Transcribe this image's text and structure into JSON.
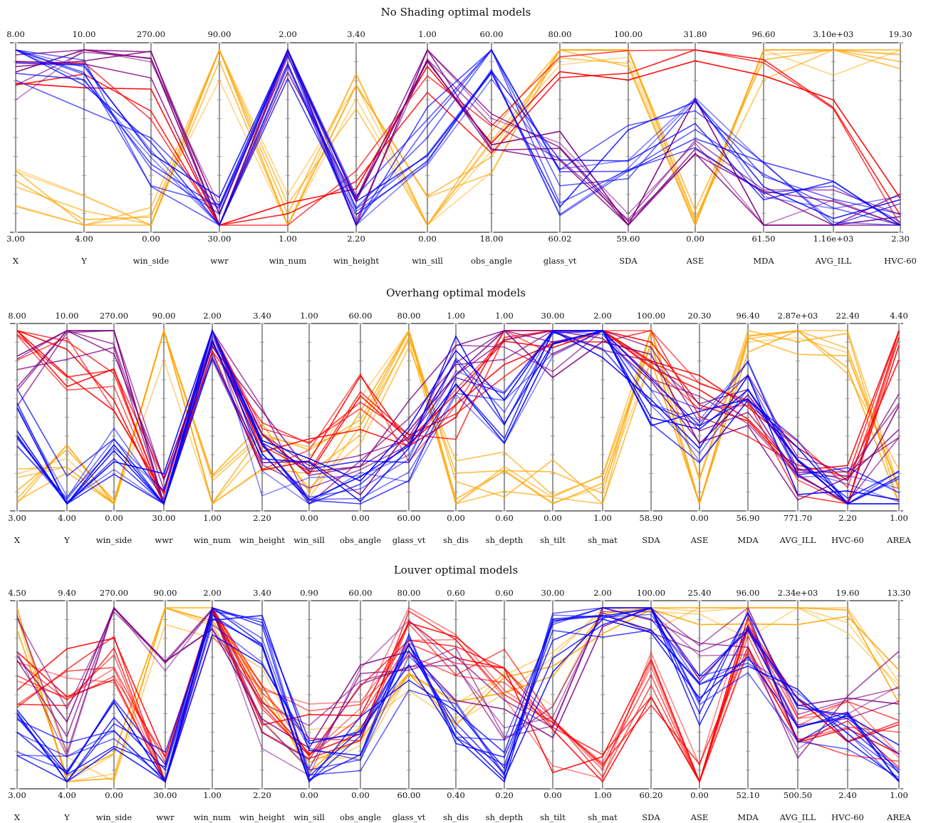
{
  "colors": {
    "orange": "#ffa500",
    "red": "#ff0000",
    "blue": "#0000ff",
    "purple": "#800080",
    "axis": "#999999",
    "frame": "#000000"
  },
  "chart_data": [
    {
      "type": "parallel_coordinates",
      "title": "No Shading optimal models",
      "axes": [
        {
          "name": "X",
          "max": "8.00",
          "min": "3.00"
        },
        {
          "name": "Y",
          "max": "10.00",
          "min": "4.00"
        },
        {
          "name": "win_side",
          "max": "270.00",
          "min": "0.00"
        },
        {
          "name": "wwr",
          "max": "90.00",
          "min": "30.00"
        },
        {
          "name": "win_num",
          "max": "2.00",
          "min": "1.00"
        },
        {
          "name": "win_height",
          "max": "3.40",
          "min": "2.20"
        },
        {
          "name": "win_sill",
          "max": "1.00",
          "min": "0.00"
        },
        {
          "name": "obs_angle",
          "max": "60.00",
          "min": "18.00"
        },
        {
          "name": "glass_vt",
          "max": "80.00",
          "min": "60.02"
        },
        {
          "name": "SDA",
          "max": "100.00",
          "min": "59.60"
        },
        {
          "name": "ASE",
          "max": "31.80",
          "min": "0.00"
        },
        {
          "name": "MDA",
          "max": "96.60",
          "min": "61.50"
        },
        {
          "name": "AVG_ILL",
          "max": "3.10e+03",
          "min": "1.16e+03"
        },
        {
          "name": "HVC-60",
          "max": "19.30",
          "min": "2.30"
        }
      ],
      "series": [
        {
          "color": "orange",
          "count": 7,
          "values": [
            0.2,
            0.1,
            0.0,
            1.0,
            0.0,
            0.8,
            0.0,
            0.4,
            1.0,
            1.0,
            0.0,
            1.0,
            1.0,
            1.0
          ]
        },
        {
          "color": "red",
          "count": 3,
          "values": [
            0.9,
            0.8,
            0.67,
            0.0,
            0.0,
            0.3,
            0.8,
            0.5,
            0.9,
            1.0,
            1.0,
            0.78,
            0.6,
            0.05
          ]
        },
        {
          "color": "purple",
          "count": 6,
          "values": [
            0.8,
            1.0,
            1.0,
            0.0,
            1.0,
            0.0,
            1.0,
            0.6,
            0.4,
            0.0,
            0.55,
            0.05,
            0.05,
            0.02
          ]
        },
        {
          "color": "blue",
          "count": 9,
          "values": [
            1.0,
            0.8,
            0.33,
            0.0,
            1.0,
            0.0,
            0.5,
            1.0,
            0.2,
            0.4,
            0.6,
            0.3,
            0.1,
            0.02
          ]
        }
      ]
    },
    {
      "type": "parallel_coordinates",
      "title": "Overhang optimal models",
      "axes": [
        {
          "name": "X",
          "max": "8.00",
          "min": "3.00"
        },
        {
          "name": "Y",
          "max": "10.00",
          "min": "4.00"
        },
        {
          "name": "win_side",
          "max": "270.00",
          "min": "0.00"
        },
        {
          "name": "wwr",
          "max": "90.00",
          "min": "30.00"
        },
        {
          "name": "win_num",
          "max": "2.00",
          "min": "1.00"
        },
        {
          "name": "win_height",
          "max": "3.40",
          "min": "2.20"
        },
        {
          "name": "win_sill",
          "max": "1.00",
          "min": "0.00"
        },
        {
          "name": "obs_angle",
          "max": "60.00",
          "min": "0.00"
        },
        {
          "name": "glass_vt",
          "max": "80.00",
          "min": "60.00"
        },
        {
          "name": "sh_dis",
          "max": "1.00",
          "min": "0.00"
        },
        {
          "name": "sh_depth",
          "max": "1.00",
          "min": "0.60"
        },
        {
          "name": "sh_tilt",
          "max": "30.00",
          "min": "0.00"
        },
        {
          "name": "sh_mat",
          "max": "2.00",
          "min": "1.00"
        },
        {
          "name": "SDA",
          "max": "100.00",
          "min": "58.90"
        },
        {
          "name": "ASE",
          "max": "20.30",
          "min": "0.00"
        },
        {
          "name": "MDA",
          "max": "96.40",
          "min": "56.90"
        },
        {
          "name": "AVG_ILL",
          "max": "2.87e+03",
          "min": "771.70"
        },
        {
          "name": "HVC-60",
          "max": "22.40",
          "min": "2.20"
        },
        {
          "name": "AREA",
          "max": "4.40",
          "min": "1.00"
        }
      ],
      "series": [
        {
          "color": "orange",
          "count": 7,
          "values": [
            0.1,
            0.2,
            0.0,
            1.0,
            0.0,
            0.3,
            0.2,
            0.5,
            1.0,
            0.1,
            0.2,
            0.1,
            0.0,
            1.0,
            0.0,
            1.0,
            1.0,
            0.9,
            0.1
          ]
        },
        {
          "color": "red",
          "count": 7,
          "values": [
            1.0,
            0.8,
            0.67,
            0.0,
            1.0,
            0.3,
            0.3,
            0.6,
            0.4,
            0.5,
            0.9,
            1.0,
            1.0,
            0.9,
            0.6,
            0.5,
            0.2,
            0.05,
            1.0
          ]
        },
        {
          "color": "purple",
          "count": 6,
          "values": [
            0.7,
            1.0,
            1.0,
            0.0,
            1.0,
            0.4,
            0.1,
            0.2,
            0.5,
            0.9,
            1.0,
            0.9,
            1.0,
            0.8,
            0.5,
            0.6,
            0.15,
            0.05,
            0.5
          ]
        },
        {
          "color": "blue",
          "count": 10,
          "values": [
            0.5,
            0.0,
            0.33,
            0.0,
            1.0,
            0.2,
            0.1,
            0.1,
            0.3,
            0.8,
            0.5,
            1.0,
            1.0,
            0.6,
            0.4,
            0.7,
            0.2,
            0.05,
            0.1
          ]
        }
      ]
    },
    {
      "type": "parallel_coordinates",
      "title": "Louver optimal models",
      "axes": [
        {
          "name": "X",
          "max": "4.50",
          "min": "3.00"
        },
        {
          "name": "Y",
          "max": "9.40",
          "min": "4.00"
        },
        {
          "name": "win_side",
          "max": "270.00",
          "min": "0.00"
        },
        {
          "name": "wwr",
          "max": "90.00",
          "min": "30.00"
        },
        {
          "name": "win_num",
          "max": "2.00",
          "min": "1.00"
        },
        {
          "name": "win_height",
          "max": "3.40",
          "min": "2.20"
        },
        {
          "name": "win_sill",
          "max": "0.90",
          "min": "0.00"
        },
        {
          "name": "obs_angle",
          "max": "60.00",
          "min": "0.00"
        },
        {
          "name": "glass_vt",
          "max": "80.00",
          "min": "60.00"
        },
        {
          "name": "sh_dis",
          "max": "0.60",
          "min": "0.40"
        },
        {
          "name": "sh_depth",
          "max": "0.60",
          "min": "0.20"
        },
        {
          "name": "sh_tilt",
          "max": "30.00",
          "min": "0.00"
        },
        {
          "name": "sh_mat",
          "max": "2.00",
          "min": "1.00"
        },
        {
          "name": "SDA",
          "max": "100.00",
          "min": "60.20"
        },
        {
          "name": "ASE",
          "max": "25.40",
          "min": "0.00"
        },
        {
          "name": "MDA",
          "max": "96.00",
          "min": "52.10"
        },
        {
          "name": "AVG_ILL",
          "max": "2.34e+03",
          "min": "500.50"
        },
        {
          "name": "HVC-60",
          "max": "19.60",
          "min": "2.40"
        },
        {
          "name": "AREA",
          "max": "13.30",
          "min": "1.00"
        }
      ],
      "series": [
        {
          "color": "orange",
          "count": 5,
          "values": [
            1.0,
            0.0,
            0.0,
            1.0,
            1.0,
            0.5,
            0.2,
            0.3,
            0.5,
            0.4,
            0.5,
            0.6,
            1.0,
            1.0,
            1.0,
            1.0,
            1.0,
            1.0,
            0.6
          ]
        },
        {
          "color": "red",
          "count": 9,
          "values": [
            0.6,
            0.6,
            0.67,
            0.0,
            1.0,
            0.4,
            0.3,
            0.4,
            0.9,
            0.7,
            0.6,
            0.2,
            0.0,
            0.6,
            0.0,
            0.9,
            0.4,
            0.3,
            0.25
          ]
        },
        {
          "color": "purple",
          "count": 5,
          "values": [
            0.8,
            0.3,
            1.0,
            0.8,
            1.0,
            0.3,
            0.2,
            0.5,
            0.8,
            0.6,
            0.3,
            0.4,
            1.0,
            1.0,
            0.7,
            0.9,
            0.3,
            0.4,
            0.6
          ]
        },
        {
          "color": "blue",
          "count": 10,
          "values": [
            0.3,
            0.1,
            0.33,
            0.0,
            1.0,
            0.8,
            0.1,
            0.2,
            0.7,
            0.3,
            0.1,
            0.8,
            1.0,
            1.0,
            0.5,
            0.8,
            0.4,
            0.3,
            0.1
          ]
        }
      ]
    }
  ]
}
